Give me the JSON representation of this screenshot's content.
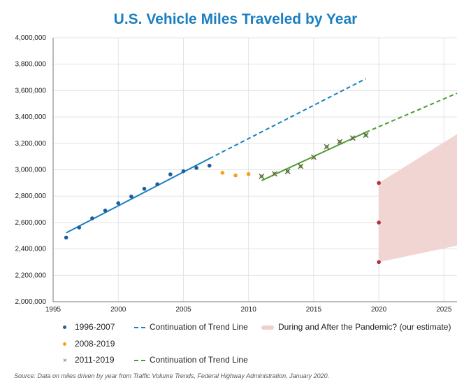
{
  "chart_data": {
    "type": "scatter",
    "title": "U.S. Vehicle Miles Traveled by Year",
    "xlabel": "",
    "ylabel": "",
    "xlim": [
      1995,
      2026
    ],
    "ylim": [
      2000000,
      4000000
    ],
    "x_ticks": [
      "1995",
      "2000",
      "2005",
      "2010",
      "2015",
      "2020",
      "2025"
    ],
    "y_ticks": [
      "2,000,000",
      "2,200,000",
      "2,400,000",
      "2,600,000",
      "2,800,000",
      "3,000,000",
      "3,200,000",
      "3,400,000",
      "3,600,000",
      "3,800,000",
      "4,000,000"
    ],
    "grid": true,
    "legend_position": "bottom",
    "series": [
      {
        "name": "1996-2007",
        "kind": "points",
        "marker": "dot",
        "color": "#1f5f99",
        "x": [
          1996,
          1997,
          1998,
          1999,
          2000,
          2001,
          2002,
          2003,
          2004,
          2005,
          2006,
          2007
        ],
        "y": [
          2486000,
          2562000,
          2632000,
          2691000,
          2747000,
          2797000,
          2856000,
          2890000,
          2965000,
          2989000,
          3014000,
          3031000
        ]
      },
      {
        "name": "2008-2019",
        "kind": "points",
        "marker": "dot",
        "color": "#f7a11a",
        "x": [
          2008,
          2009,
          2010,
          2011,
          2012,
          2013,
          2014,
          2015,
          2016,
          2017,
          2018,
          2019
        ],
        "y": [
          2977000,
          2957000,
          2967000,
          2950000,
          2969000,
          2988000,
          3026000,
          3095000,
          3174000,
          3212000,
          3240000,
          3262000
        ]
      },
      {
        "name": "2011-2019",
        "kind": "points",
        "marker": "x",
        "color": "#2f6f6f",
        "x": [
          2011,
          2012,
          2013,
          2014,
          2015,
          2016,
          2017,
          2018,
          2019
        ],
        "y": [
          2950000,
          2969000,
          2988000,
          3026000,
          3095000,
          3174000,
          3212000,
          3240000,
          3262000
        ]
      },
      {
        "kind": "line",
        "color": "#1a7fc1",
        "x": [
          1996,
          2007
        ],
        "y": [
          2522000,
          3085000
        ]
      },
      {
        "name": "Continuation of Trend Line",
        "kind": "dashed",
        "color": "#1a7fc1",
        "x": [
          2007,
          2019
        ],
        "y": [
          3085000,
          3690000
        ]
      },
      {
        "kind": "line",
        "color": "#4a9e2f",
        "x": [
          2011,
          2019
        ],
        "y": [
          2918000,
          3284000
        ]
      },
      {
        "name": "Continuation of Trend Line",
        "kind": "dashed",
        "color": "#4a9e2f",
        "x": [
          2019,
          2026
        ],
        "y": [
          3284000,
          3580000
        ]
      },
      {
        "name": "During and After the Pandemic? (our estimate)",
        "kind": "band",
        "color": "#efd0cd",
        "x": [
          2020,
          2026
        ],
        "lower": [
          2300000,
          2425000
        ],
        "upper": [
          2900000,
          3270000
        ]
      },
      {
        "kind": "points",
        "marker": "dot",
        "color": "#b0313a",
        "x": [
          2020,
          2020,
          2020
        ],
        "y": [
          2900000,
          2600000,
          2300000
        ]
      }
    ],
    "legend": [
      {
        "label": "1996-2007",
        "marker": "dot",
        "color": "#1f5f99"
      },
      {
        "label": "Continuation of Trend Line",
        "marker": "dash",
        "color": "#1a7fc1"
      },
      {
        "label": "During and After the Pandemic? (our estimate)",
        "marker": "band",
        "color": "#efd0cd"
      },
      {
        "label": "2008-2019",
        "marker": "dot",
        "color": "#f7a11a"
      },
      {
        "label": "2011-2019",
        "marker": "x",
        "color": "#2f6f6f"
      },
      {
        "label": "Continuation of Trend Line",
        "marker": "dash",
        "color": "#4a9e2f"
      }
    ],
    "source": "Source: Data on miles driven by year from Traffic Volume Trends, Federal Highway Administration, January 2020."
  }
}
